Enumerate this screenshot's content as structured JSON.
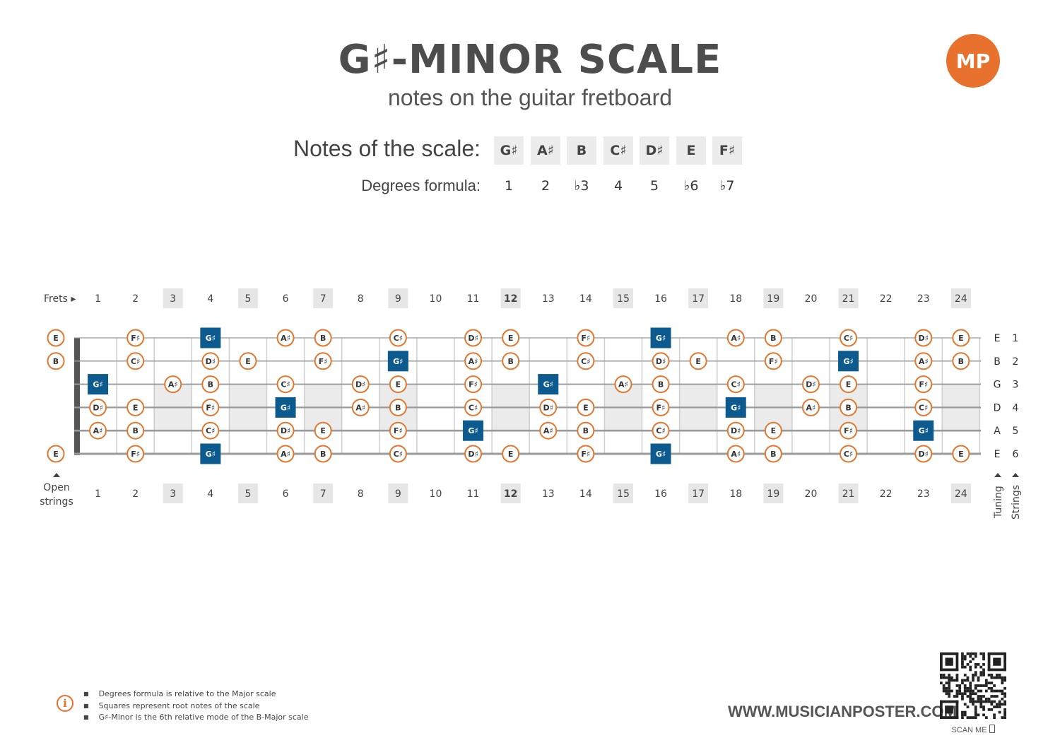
{
  "title": "G♯-MINOR SCALE",
  "subtitle": "notes on the guitar fretboard",
  "logo": {
    "text": "MP",
    "color": "#e8712e"
  },
  "scale": {
    "notes_label": "Notes of the scale:",
    "degrees_label": "Degrees formula:",
    "notes": [
      "G♯",
      "A♯",
      "B",
      "C♯",
      "D♯",
      "E",
      "F♯"
    ],
    "degrees": [
      "1",
      "2",
      "♭3",
      "4",
      "5",
      "♭6",
      "♭7"
    ]
  },
  "fretboard": {
    "frets_label": "Frets ▸",
    "open_strings_label": [
      "Open",
      "strings"
    ],
    "tuning_label": "Tuning",
    "strings_label": "Strings",
    "fret_numbers": [
      "1",
      "2",
      "3",
      "4",
      "5",
      "6",
      "7",
      "8",
      "9",
      "10",
      "11",
      "12",
      "13",
      "14",
      "15",
      "16",
      "17",
      "18",
      "19",
      "20",
      "21",
      "22",
      "23",
      "24"
    ],
    "highlighted_frets": [
      "3",
      "5",
      "7",
      "9",
      "12",
      "15",
      "17",
      "19",
      "21",
      "24"
    ],
    "shaded_frets": [
      "3",
      "5",
      "7",
      "9",
      "12",
      "15",
      "17",
      "19",
      "21",
      "24"
    ],
    "root_note": "G♯",
    "colors": {
      "note_ring": "#e0782f",
      "root_fill": "#0d5b8e",
      "fret_box": "#e6e6e6"
    },
    "strings": [
      {
        "tuning": "E",
        "number": "1",
        "open": "E",
        "notes": [
          "",
          "F♯",
          "",
          "G♯",
          "",
          "A♯",
          "B",
          "",
          "C♯",
          "",
          "D♯",
          "E",
          "",
          "F♯",
          "",
          "G♯",
          "",
          "A♯",
          "B",
          "",
          "C♯",
          "",
          "D♯",
          "E"
        ]
      },
      {
        "tuning": "B",
        "number": "2",
        "open": "B",
        "notes": [
          "",
          "C♯",
          "",
          "D♯",
          "E",
          "",
          "F♯",
          "",
          "G♯",
          "",
          "A♯",
          "B",
          "",
          "C♯",
          "",
          "D♯",
          "E",
          "",
          "F♯",
          "",
          "G♯",
          "",
          "A♯",
          "B"
        ]
      },
      {
        "tuning": "G",
        "number": "3",
        "open": "",
        "notes": [
          "G♯",
          "",
          "A♯",
          "B",
          "",
          "C♯",
          "",
          "D♯",
          "E",
          "",
          "F♯",
          "",
          "G♯",
          "",
          "A♯",
          "B",
          "",
          "C♯",
          "",
          "D♯",
          "E",
          "",
          "F♯",
          ""
        ]
      },
      {
        "tuning": "D",
        "number": "4",
        "open": "",
        "notes": [
          "D♯",
          "E",
          "",
          "F♯",
          "",
          "G♯",
          "",
          "A♯",
          "B",
          "",
          "C♯",
          "",
          "D♯",
          "E",
          "",
          "F♯",
          "",
          "G♯",
          "",
          "A♯",
          "B",
          "",
          "C♯",
          ""
        ]
      },
      {
        "tuning": "A",
        "number": "5",
        "open": "",
        "notes": [
          "A♯",
          "B",
          "",
          "C♯",
          "",
          "D♯",
          "E",
          "",
          "F♯",
          "",
          "G♯",
          "",
          "A♯",
          "B",
          "",
          "C♯",
          "",
          "D♯",
          "E",
          "",
          "F♯",
          "",
          "G♯",
          ""
        ]
      },
      {
        "tuning": "E",
        "number": "6",
        "open": "E",
        "notes": [
          "",
          "F♯",
          "",
          "G♯",
          "",
          "A♯",
          "B",
          "",
          "C♯",
          "",
          "D♯",
          "E",
          "",
          "F♯",
          "",
          "G♯",
          "",
          "A♯",
          "B",
          "",
          "C♯",
          "",
          "D♯",
          "E"
        ]
      }
    ]
  },
  "info": {
    "items": [
      "Degrees formula is relative to the Major scale",
      "Squares represent root notes of the scale",
      "G♯-Minor is the 6th relative mode of the B-Major scale"
    ]
  },
  "website": "WWW.MUSICIANPOSTER.COM",
  "scan_me": "SCAN ME"
}
